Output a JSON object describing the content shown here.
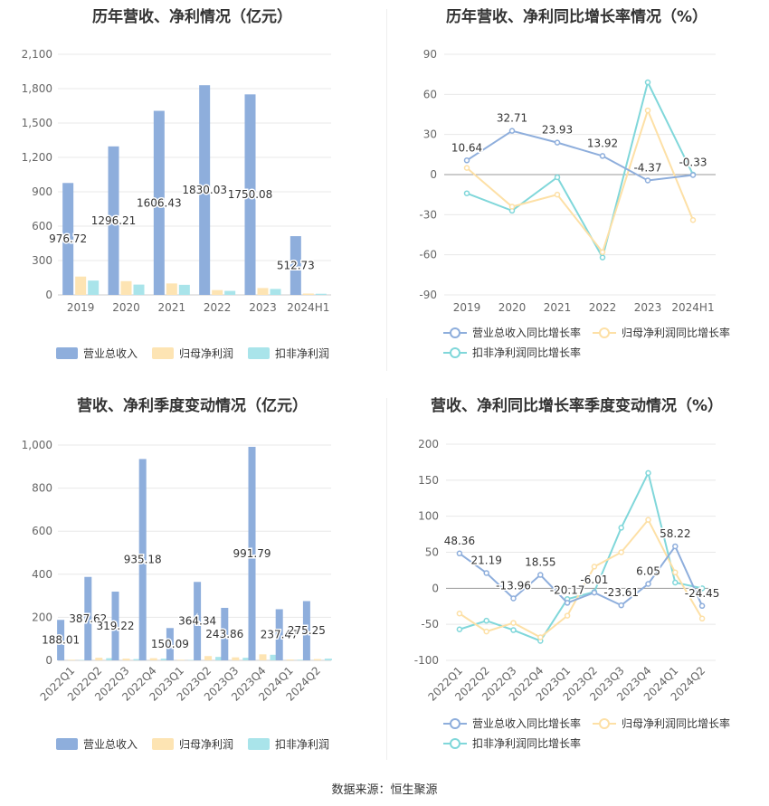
{
  "footer": "数据来源：恒生聚源",
  "colors": {
    "revenue": "#8eaedc",
    "net_profit": "#fde4b3",
    "deducted_profit": "#a9e4ea",
    "revenue_line": "#8eaedc",
    "net_profit_line": "#fde0a6",
    "deducted_line": "#80d7da"
  },
  "chart_data": [
    {
      "type": "bar",
      "title": "历年营收、净利情况（亿元）",
      "categories": [
        "2019",
        "2020",
        "2021",
        "2022",
        "2023",
        "2024H1"
      ],
      "ylim": [
        0,
        2100
      ],
      "yticks": [
        0,
        300,
        600,
        900,
        1200,
        1500,
        1800,
        2100
      ],
      "ytick_labels": [
        "0",
        "300",
        "600",
        "900",
        "1,200",
        "1,500",
        "1,800",
        "2,100"
      ],
      "series": [
        {
          "name": "营业总收入",
          "values": [
            976.72,
            1296.21,
            1606.43,
            1830.03,
            1750.08,
            512.73
          ],
          "labels": [
            "976.72",
            "1296.21",
            "1606.43",
            "1830.03",
            "1750.08",
            "512.73"
          ]
        },
        {
          "name": "归母净利润",
          "values": [
            160,
            120,
            100,
            42,
            60,
            12
          ]
        },
        {
          "name": "扣非净利润",
          "values": [
            125,
            90,
            88,
            35,
            52,
            10
          ]
        }
      ],
      "legend": "bottom",
      "grid": true
    },
    {
      "type": "line",
      "title": "历年营收、净利同比增长率情况（%）",
      "categories": [
        "2019",
        "2020",
        "2021",
        "2022",
        "2023",
        "2024H1"
      ],
      "ylim": [
        -90,
        90
      ],
      "yticks": [
        -90,
        -60,
        -30,
        0,
        30,
        60,
        90
      ],
      "ytick_labels": [
        "-90",
        "-60",
        "-30",
        "0",
        "30",
        "60",
        "90"
      ],
      "series": [
        {
          "name": "营业总收入同比增长率",
          "values": [
            10.64,
            32.71,
            23.93,
            13.92,
            -4.37,
            -0.33
          ],
          "labels": [
            "10.64",
            "32.71",
            "23.93",
            "13.92",
            "-4.37",
            "-0.33"
          ]
        },
        {
          "name": "归母净利润同比增长率",
          "values": [
            5,
            -24,
            -15,
            -58,
            48,
            -34
          ]
        },
        {
          "name": "扣非净利润同比增长率",
          "values": [
            -14,
            -27,
            -2,
            -62,
            69,
            0
          ]
        }
      ],
      "legend": "bottom",
      "grid": true
    },
    {
      "type": "bar",
      "title": "营收、净利季度变动情况（亿元）",
      "categories": [
        "2022Q1",
        "2022Q2",
        "2022Q3",
        "2022Q4",
        "2023Q1",
        "2023Q2",
        "2023Q3",
        "2023Q4",
        "2024Q1",
        "2024Q2"
      ],
      "ylim": [
        0,
        1000
      ],
      "yticks": [
        0,
        200,
        400,
        600,
        800,
        1000
      ],
      "ytick_labels": [
        "0",
        "200",
        "400",
        "600",
        "800",
        "1,000"
      ],
      "series": [
        {
          "name": "营业总收入",
          "values": [
            188.01,
            387.62,
            319.22,
            935.18,
            150.09,
            364.34,
            243.86,
            991.79,
            237.47,
            275.25
          ],
          "labels": [
            "188.01",
            "387.62",
            "319.22",
            "935.18",
            "150.09",
            "364.34",
            "243.86",
            "991.79",
            "237.47",
            "275.25"
          ]
        },
        {
          "name": "归母净利润",
          "values": [
            3,
            12,
            8,
            10,
            3,
            20,
            14,
            28,
            4,
            6
          ]
        },
        {
          "name": "扣非净利润",
          "values": [
            2,
            10,
            6,
            8,
            2,
            16,
            12,
            26,
            3,
            8
          ]
        }
      ],
      "legend": "bottom",
      "grid": true
    },
    {
      "type": "line",
      "title": "营收、净利同比增长率季度变动情况（%）",
      "categories": [
        "2022Q1",
        "2022Q2",
        "2022Q3",
        "2022Q4",
        "2023Q1",
        "2023Q2",
        "2023Q3",
        "2023Q4",
        "2024Q1",
        "2024Q2"
      ],
      "ylim": [
        -100,
        200
      ],
      "yticks": [
        -100,
        -50,
        0,
        50,
        100,
        150,
        200
      ],
      "ytick_labels": [
        "-100",
        "-50",
        "0",
        "50",
        "100",
        "150",
        "200"
      ],
      "series": [
        {
          "name": "营业总收入同比增长率",
          "values": [
            48.36,
            21.19,
            -13.96,
            18.55,
            -20.17,
            -6.01,
            -23.61,
            6.05,
            58.22,
            -24.45
          ],
          "labels": [
            "48.36",
            "21.19",
            "-13.96",
            "18.55",
            "-20.17",
            "-6.01",
            "-23.61",
            "6.05",
            "58.22",
            "-24.45"
          ]
        },
        {
          "name": "归母净利润同比增长率",
          "values": [
            -35,
            -60,
            -48,
            -68,
            -38,
            30,
            50,
            95,
            22,
            -42
          ]
        },
        {
          "name": "扣非净利润同比增长率",
          "values": [
            -57,
            -45,
            -58,
            -73,
            -15,
            -5,
            84,
            160,
            8,
            0
          ]
        }
      ],
      "legend": "bottom",
      "grid": true
    }
  ]
}
